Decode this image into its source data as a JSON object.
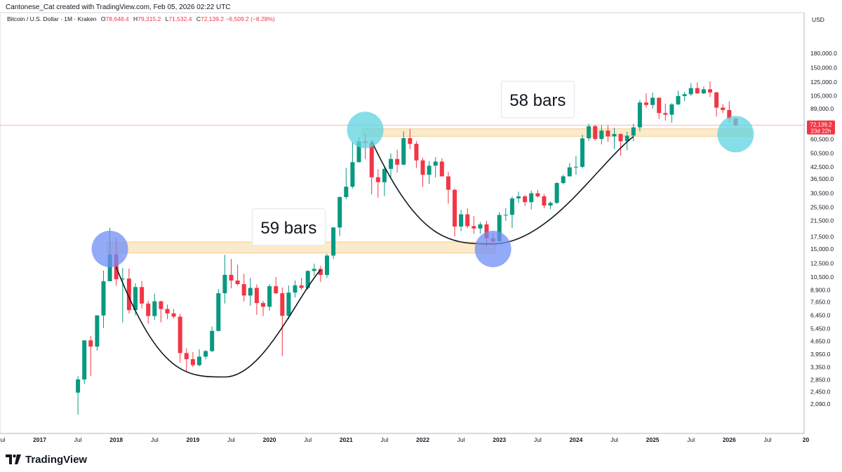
{
  "header": {
    "credit": "Cantonese_Cat created with TradingView.com, Feb 05, 2026 02:22 UTC",
    "symbol": "Bitcoin / U.S. Dollar · 1M · Kraken",
    "ohlc": {
      "o_label": "O",
      "o": "78,648.4",
      "h_label": "H",
      "h": "79,315.2",
      "l_label": "L",
      "l": "71,532.4",
      "c_label": "C",
      "c": "72,139.2",
      "change": "−6,509.2 (−8.28%)"
    }
  },
  "branding": {
    "name": "TradingView"
  },
  "colors": {
    "up": "#089981",
    "down": "#f23645",
    "zone": "#fbe3bb",
    "zone_border": "#f3c27a",
    "circle_blue": "#6f8ef5",
    "circle_cyan": "#5ed3e0",
    "price_line": "#f23645",
    "axis_text": "#131722"
  },
  "chart_data": {
    "type": "candlestick",
    "currency": "USD",
    "timeframe": "1M",
    "scale": "log",
    "x_ticks": [
      {
        "label": "Jul",
        "date": "2016-07"
      },
      {
        "label": "2017",
        "date": "2017-01"
      },
      {
        "label": "Jul",
        "date": "2017-07"
      },
      {
        "label": "2018",
        "date": "2018-01"
      },
      {
        "label": "Jul",
        "date": "2018-07"
      },
      {
        "label": "2019",
        "date": "2019-01"
      },
      {
        "label": "Jul",
        "date": "2019-07"
      },
      {
        "label": "2020",
        "date": "2020-01"
      },
      {
        "label": "Jul",
        "date": "2020-07"
      },
      {
        "label": "2021",
        "date": "2021-01"
      },
      {
        "label": "Jul",
        "date": "2021-07"
      },
      {
        "label": "2022",
        "date": "2022-01"
      },
      {
        "label": "Jul",
        "date": "2022-07"
      },
      {
        "label": "2023",
        "date": "2023-01"
      },
      {
        "label": "Jul",
        "date": "2023-07"
      },
      {
        "label": "2024",
        "date": "2024-01"
      },
      {
        "label": "Jul",
        "date": "2024-07"
      },
      {
        "label": "2025",
        "date": "2025-01"
      },
      {
        "label": "Jul",
        "date": "2025-07"
      },
      {
        "label": "2026",
        "date": "2026-01"
      },
      {
        "label": "Jul",
        "date": "2026-07"
      },
      {
        "label": "20",
        "date": "2027-01"
      }
    ],
    "y_ticks": [
      {
        "label": "180,000.0",
        "value": 180000
      },
      {
        "label": "150,000.0",
        "value": 150000
      },
      {
        "label": "125,000.0",
        "value": 125000
      },
      {
        "label": "105,000.0",
        "value": 105000
      },
      {
        "label": "89,000.0",
        "value": 89000
      },
      {
        "label": "60,500.0",
        "value": 60500
      },
      {
        "label": "50,500.0",
        "value": 50500
      },
      {
        "label": "42,500.0",
        "value": 42500
      },
      {
        "label": "36,500.0",
        "value": 36500
      },
      {
        "label": "30,500.0",
        "value": 30500
      },
      {
        "label": "25,500.0",
        "value": 25500
      },
      {
        "label": "21,500.0",
        "value": 21500
      },
      {
        "label": "17,500.0",
        "value": 17500
      },
      {
        "label": "15,000.0",
        "value": 15000
      },
      {
        "label": "12,500.0",
        "value": 12500
      },
      {
        "label": "10,500.0",
        "value": 10500
      },
      {
        "label": "8,900.0",
        "value": 8900
      },
      {
        "label": "7,650.0",
        "value": 7650
      },
      {
        "label": "6,450.0",
        "value": 6450
      },
      {
        "label": "5,450.0",
        "value": 5450
      },
      {
        "label": "4,650.0",
        "value": 4650
      },
      {
        "label": "3,950.0",
        "value": 3950
      },
      {
        "label": "3,350.0",
        "value": 3350
      },
      {
        "label": "2,850.0",
        "value": 2850
      },
      {
        "label": "2,450.0",
        "value": 2450
      },
      {
        "label": "2,090.0",
        "value": 2090
      }
    ],
    "last_price": {
      "label": "72,139.2",
      "value": 72139.2,
      "countdown": "23d 22h"
    },
    "candles": [
      {
        "d": "2017-07",
        "o": 2420,
        "h": 2990,
        "l": 1830,
        "c": 2860
      },
      {
        "d": "2017-08",
        "o": 2860,
        "h": 4700,
        "l": 2700,
        "c": 4700
      },
      {
        "d": "2017-09",
        "o": 4700,
        "h": 4970,
        "l": 2980,
        "c": 4340
      },
      {
        "d": "2017-10",
        "o": 4340,
        "h": 6450,
        "l": 4120,
        "c": 6450
      },
      {
        "d": "2017-11",
        "o": 6450,
        "h": 11400,
        "l": 5500,
        "c": 9950
      },
      {
        "d": "2017-12",
        "o": 9950,
        "h": 19650,
        "l": 10800,
        "c": 14000
      },
      {
        "d": "2018-01",
        "o": 14000,
        "h": 17200,
        "l": 9400,
        "c": 10200
      },
      {
        "d": "2018-02",
        "o": 10200,
        "h": 11800,
        "l": 5900,
        "c": 10300
      },
      {
        "d": "2018-03",
        "o": 10300,
        "h": 11700,
        "l": 6600,
        "c": 6900
      },
      {
        "d": "2018-04",
        "o": 6900,
        "h": 9700,
        "l": 6450,
        "c": 9250
      },
      {
        "d": "2018-05",
        "o": 9250,
        "h": 9990,
        "l": 7050,
        "c": 7500
      },
      {
        "d": "2018-06",
        "o": 7500,
        "h": 7780,
        "l": 5800,
        "c": 6400
      },
      {
        "d": "2018-07",
        "o": 6400,
        "h": 8500,
        "l": 6100,
        "c": 7720
      },
      {
        "d": "2018-08",
        "o": 7720,
        "h": 7780,
        "l": 5900,
        "c": 7000
      },
      {
        "d": "2018-09",
        "o": 7000,
        "h": 7400,
        "l": 6150,
        "c": 6620
      },
      {
        "d": "2018-10",
        "o": 6620,
        "h": 7000,
        "l": 6200,
        "c": 6350
      },
      {
        "d": "2018-11",
        "o": 6350,
        "h": 6600,
        "l": 3550,
        "c": 4000
      },
      {
        "d": "2018-12",
        "o": 4000,
        "h": 4250,
        "l": 3150,
        "c": 3700
      },
      {
        "d": "2019-01",
        "o": 3700,
        "h": 4050,
        "l": 3350,
        "c": 3430
      },
      {
        "d": "2019-02",
        "o": 3430,
        "h": 4200,
        "l": 3380,
        "c": 3820
      },
      {
        "d": "2019-03",
        "o": 3820,
        "h": 4150,
        "l": 3700,
        "c": 4100
      },
      {
        "d": "2019-04",
        "o": 4100,
        "h": 5600,
        "l": 4050,
        "c": 5300
      },
      {
        "d": "2019-05",
        "o": 5300,
        "h": 9000,
        "l": 5250,
        "c": 8550
      },
      {
        "d": "2019-06",
        "o": 8550,
        "h": 13900,
        "l": 7500,
        "c": 10800
      },
      {
        "d": "2019-07",
        "o": 10800,
        "h": 13200,
        "l": 9100,
        "c": 10050
      },
      {
        "d": "2019-08",
        "o": 10050,
        "h": 12300,
        "l": 9450,
        "c": 9600
      },
      {
        "d": "2019-09",
        "o": 9600,
        "h": 10950,
        "l": 7700,
        "c": 8300
      },
      {
        "d": "2019-10",
        "o": 8300,
        "h": 10400,
        "l": 7300,
        "c": 9150
      },
      {
        "d": "2019-11",
        "o": 9150,
        "h": 9550,
        "l": 6500,
        "c": 7550
      },
      {
        "d": "2019-12",
        "o": 7550,
        "h": 7750,
        "l": 6400,
        "c": 7200
      },
      {
        "d": "2020-01",
        "o": 7200,
        "h": 9600,
        "l": 6850,
        "c": 9350
      },
      {
        "d": "2020-02",
        "o": 9350,
        "h": 10500,
        "l": 8450,
        "c": 8550
      },
      {
        "d": "2020-03",
        "o": 8550,
        "h": 9200,
        "l": 3850,
        "c": 6420
      },
      {
        "d": "2020-04",
        "o": 6420,
        "h": 9450,
        "l": 6150,
        "c": 8620
      },
      {
        "d": "2020-05",
        "o": 8620,
        "h": 10050,
        "l": 8100,
        "c": 9450
      },
      {
        "d": "2020-06",
        "o": 9450,
        "h": 10400,
        "l": 8900,
        "c": 9140
      },
      {
        "d": "2020-07",
        "o": 9140,
        "h": 11450,
        "l": 8950,
        "c": 11350
      },
      {
        "d": "2020-08",
        "o": 11350,
        "h": 12450,
        "l": 10650,
        "c": 11650
      },
      {
        "d": "2020-09",
        "o": 11650,
        "h": 12100,
        "l": 9850,
        "c": 10780
      },
      {
        "d": "2020-10",
        "o": 10780,
        "h": 14100,
        "l": 10400,
        "c": 13800
      },
      {
        "d": "2020-11",
        "o": 13800,
        "h": 19850,
        "l": 13200,
        "c": 19700
      },
      {
        "d": "2020-12",
        "o": 19700,
        "h": 29300,
        "l": 17650,
        "c": 29000
      },
      {
        "d": "2021-01",
        "o": 29000,
        "h": 41950,
        "l": 28150,
        "c": 33100
      },
      {
        "d": "2021-02",
        "o": 33100,
        "h": 58350,
        "l": 32350,
        "c": 45200
      },
      {
        "d": "2021-03",
        "o": 45200,
        "h": 61800,
        "l": 44950,
        "c": 58800
      },
      {
        "d": "2021-04",
        "o": 58800,
        "h": 64900,
        "l": 47000,
        "c": 57800
      },
      {
        "d": "2021-05",
        "o": 57800,
        "h": 59500,
        "l": 30000,
        "c": 37300
      },
      {
        "d": "2021-06",
        "o": 37300,
        "h": 41300,
        "l": 28800,
        "c": 35050
      },
      {
        "d": "2021-07",
        "o": 35050,
        "h": 42400,
        "l": 29300,
        "c": 41500
      },
      {
        "d": "2021-08",
        "o": 41500,
        "h": 50500,
        "l": 37300,
        "c": 47100
      },
      {
        "d": "2021-09",
        "o": 47100,
        "h": 52900,
        "l": 39600,
        "c": 43800
      },
      {
        "d": "2021-10",
        "o": 43800,
        "h": 66900,
        "l": 43300,
        "c": 61300
      },
      {
        "d": "2021-11",
        "o": 61300,
        "h": 69000,
        "l": 53300,
        "c": 57000
      },
      {
        "d": "2021-12",
        "o": 57000,
        "h": 59100,
        "l": 42000,
        "c": 46200
      },
      {
        "d": "2022-01",
        "o": 46200,
        "h": 47900,
        "l": 33000,
        "c": 38500
      },
      {
        "d": "2022-02",
        "o": 38500,
        "h": 45800,
        "l": 34300,
        "c": 43200
      },
      {
        "d": "2022-03",
        "o": 43200,
        "h": 48200,
        "l": 37200,
        "c": 45500
      },
      {
        "d": "2022-04",
        "o": 45500,
        "h": 47400,
        "l": 37700,
        "c": 37700
      },
      {
        "d": "2022-05",
        "o": 37700,
        "h": 40000,
        "l": 26700,
        "c": 31800
      },
      {
        "d": "2022-06",
        "o": 31800,
        "h": 32400,
        "l": 17600,
        "c": 19950
      },
      {
        "d": "2022-07",
        "o": 19950,
        "h": 24650,
        "l": 18800,
        "c": 23300
      },
      {
        "d": "2022-08",
        "o": 23300,
        "h": 25200,
        "l": 19550,
        "c": 20050
      },
      {
        "d": "2022-09",
        "o": 20050,
        "h": 22800,
        "l": 18150,
        "c": 19450
      },
      {
        "d": "2022-10",
        "o": 19450,
        "h": 21100,
        "l": 18200,
        "c": 20500
      },
      {
        "d": "2022-11",
        "o": 20500,
        "h": 21450,
        "l": 15500,
        "c": 17150
      },
      {
        "d": "2022-12",
        "o": 17150,
        "h": 18400,
        "l": 16250,
        "c": 16550
      },
      {
        "d": "2023-01",
        "o": 16550,
        "h": 23950,
        "l": 16500,
        "c": 23100
      },
      {
        "d": "2023-02",
        "o": 23100,
        "h": 25250,
        "l": 21400,
        "c": 23150
      },
      {
        "d": "2023-03",
        "o": 23150,
        "h": 29200,
        "l": 19550,
        "c": 28500
      },
      {
        "d": "2023-04",
        "o": 28500,
        "h": 31050,
        "l": 26900,
        "c": 29250
      },
      {
        "d": "2023-05",
        "o": 29250,
        "h": 29850,
        "l": 25850,
        "c": 27200
      },
      {
        "d": "2023-06",
        "o": 27200,
        "h": 31450,
        "l": 24800,
        "c": 30450
      },
      {
        "d": "2023-07",
        "o": 30450,
        "h": 31850,
        "l": 28850,
        "c": 29250
      },
      {
        "d": "2023-08",
        "o": 29250,
        "h": 30200,
        "l": 25150,
        "c": 26050
      },
      {
        "d": "2023-09",
        "o": 26050,
        "h": 27500,
        "l": 24900,
        "c": 26950
      },
      {
        "d": "2023-10",
        "o": 26950,
        "h": 35200,
        "l": 26550,
        "c": 34650
      },
      {
        "d": "2023-11",
        "o": 34650,
        "h": 38450,
        "l": 34100,
        "c": 37750
      },
      {
        "d": "2023-12",
        "o": 37750,
        "h": 44750,
        "l": 37600,
        "c": 42300
      },
      {
        "d": "2024-01",
        "o": 42300,
        "h": 48950,
        "l": 38550,
        "c": 42600
      },
      {
        "d": "2024-02",
        "o": 42600,
        "h": 64000,
        "l": 41900,
        "c": 61150
      },
      {
        "d": "2024-03",
        "o": 61150,
        "h": 73800,
        "l": 59100,
        "c": 71300
      },
      {
        "d": "2024-04",
        "o": 71300,
        "h": 72800,
        "l": 59200,
        "c": 60650
      },
      {
        "d": "2024-05",
        "o": 60650,
        "h": 71950,
        "l": 56600,
        "c": 67500
      },
      {
        "d": "2024-06",
        "o": 67500,
        "h": 72000,
        "l": 58450,
        "c": 62700
      },
      {
        "d": "2024-07",
        "o": 62700,
        "h": 70000,
        "l": 53500,
        "c": 64600
      },
      {
        "d": "2024-08",
        "o": 64600,
        "h": 65100,
        "l": 49000,
        "c": 58950
      },
      {
        "d": "2024-09",
        "o": 58950,
        "h": 66500,
        "l": 52550,
        "c": 63300
      },
      {
        "d": "2024-10",
        "o": 63300,
        "h": 73600,
        "l": 58850,
        "c": 70300
      },
      {
        "d": "2024-11",
        "o": 70300,
        "h": 99600,
        "l": 66800,
        "c": 96400
      },
      {
        "d": "2024-12",
        "o": 96400,
        "h": 108300,
        "l": 90500,
        "c": 93400
      },
      {
        "d": "2025-01",
        "o": 93400,
        "h": 109350,
        "l": 89200,
        "c": 102400
      },
      {
        "d": "2025-02",
        "o": 102400,
        "h": 102750,
        "l": 78200,
        "c": 84350
      },
      {
        "d": "2025-03",
        "o": 84350,
        "h": 95000,
        "l": 76600,
        "c": 82550
      },
      {
        "d": "2025-04",
        "o": 82550,
        "h": 95750,
        "l": 74450,
        "c": 94200
      },
      {
        "d": "2025-05",
        "o": 94200,
        "h": 111900,
        "l": 93400,
        "c": 104600
      },
      {
        "d": "2025-06",
        "o": 104600,
        "h": 110400,
        "l": 98200,
        "c": 107150
      },
      {
        "d": "2025-07",
        "o": 107150,
        "h": 123200,
        "l": 105100,
        "c": 115750
      },
      {
        "d": "2025-08",
        "o": 115750,
        "h": 124500,
        "l": 107300,
        "c": 108250
      },
      {
        "d": "2025-09",
        "o": 108250,
        "h": 117900,
        "l": 107300,
        "c": 114050
      },
      {
        "d": "2025-10",
        "o": 114050,
        "h": 126200,
        "l": 103500,
        "c": 109600
      },
      {
        "d": "2025-11",
        "o": 109600,
        "h": 110600,
        "l": 80600,
        "c": 90350
      },
      {
        "d": "2025-12",
        "o": 90350,
        "h": 94600,
        "l": 84450,
        "c": 87600
      },
      {
        "d": "2026-01",
        "o": 87600,
        "h": 97900,
        "l": 74800,
        "c": 78650
      },
      {
        "d": "2026-02",
        "o": 78648.4,
        "h": 79315.2,
        "l": 71532.4,
        "c": 72139.2
      }
    ],
    "annotations": {
      "zones": [
        {
          "from": "2017-12",
          "to": "2022-12",
          "low": 14250,
          "high": 16400
        },
        {
          "from": "2021-04",
          "to": "2026-04",
          "low": 62800,
          "high": 69000
        }
      ],
      "circles": [
        {
          "date": "2017-12",
          "value": 15000,
          "kind": "blue"
        },
        {
          "date": "2021-04",
          "value": 68000,
          "kind": "cyan"
        },
        {
          "date": "2022-12",
          "value": 15000,
          "kind": "blue"
        },
        {
          "date": "2026-02",
          "value": 64500,
          "kind": "cyan"
        }
      ],
      "arcs": [
        {
          "from": {
            "date": "2018-01",
            "value": 11900
          },
          "bottom": {
            "date": "2019-06",
            "value": 2950
          },
          "to": {
            "date": "2020-09",
            "value": 11500
          }
        },
        {
          "from": {
            "date": "2021-05",
            "value": 59000
          },
          "bottom": {
            "date": "2022-12",
            "value": 16000
          },
          "to": {
            "date": "2024-10",
            "value": 62500
          }
        }
      ],
      "labels": [
        {
          "text": "59 bars",
          "date": "2020-04",
          "value": 19800
        },
        {
          "text": "58 bars",
          "date": "2023-07",
          "value": 100000
        }
      ]
    }
  }
}
